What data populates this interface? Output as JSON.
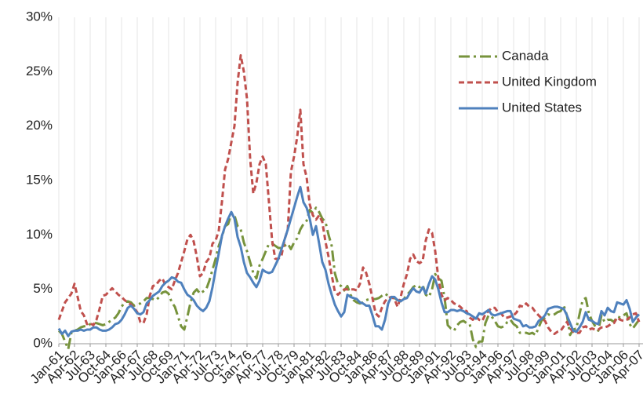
{
  "chart_data": {
    "type": "line",
    "categories": [
      "Jan-61",
      null,
      null,
      null,
      null,
      "Apr-62",
      null,
      null,
      null,
      null,
      "Jul-63",
      null,
      null,
      null,
      null,
      "Oct-64",
      null,
      null,
      null,
      null,
      "Jan-66",
      null,
      null,
      null,
      null,
      "Apr-67",
      null,
      null,
      null,
      null,
      "Jul-68",
      null,
      null,
      null,
      null,
      "Oct-69",
      null,
      null,
      null,
      null,
      "Jan-71",
      null,
      null,
      null,
      null,
      "Apr-72",
      null,
      null,
      null,
      null,
      "Jul-73",
      null,
      null,
      null,
      null,
      "Oct-74",
      null,
      null,
      null,
      null,
      "Jan-76",
      null,
      null,
      null,
      null,
      "Apr-77",
      null,
      null,
      null,
      null,
      "Jul-78",
      null,
      null,
      null,
      null,
      "Oct-79",
      null,
      null,
      null,
      null,
      "Jan-81",
      null,
      null,
      null,
      null,
      "Apr-82",
      null,
      null,
      null,
      null,
      "Jul-83",
      null,
      null,
      null,
      null,
      "Oct-84",
      null,
      null,
      null,
      null,
      "Jan-86",
      null,
      null,
      null,
      null,
      "Apr-87",
      null,
      null,
      null,
      null,
      "Jul-88",
      null,
      null,
      null,
      null,
      "Oct-89",
      null,
      null,
      null,
      null,
      "Jan-91",
      null,
      null,
      null,
      null,
      "Apr-92",
      null,
      null,
      null,
      null,
      "Jul-93",
      null,
      null,
      null,
      null,
      "Oct-94",
      null,
      null,
      null,
      null,
      "Jan-96",
      null,
      null,
      null,
      null,
      "Apr-97",
      null,
      null,
      null,
      null,
      "Jul-98",
      null,
      null,
      null,
      null,
      "Oct-99",
      null,
      null,
      null,
      null,
      "Jan-01",
      null,
      null,
      null,
      null,
      "Apr-02",
      null,
      null,
      null,
      null,
      "Jul-03",
      null,
      null,
      null,
      null,
      "Oct-04",
      null,
      null,
      null,
      null,
      "Jan-06",
      null,
      null,
      null,
      null,
      "Apr-07"
    ],
    "series": [
      {
        "name": "Canada",
        "color": "#77933c",
        "dash": "14,5,3,5",
        "values": [
          1.2,
          0.9,
          0.2,
          -0.5,
          1.0,
          1.2,
          1.3,
          1.5,
          1.6,
          1.6,
          1.8,
          1.9,
          1.9,
          1.8,
          1.7,
          1.8,
          2.0,
          2.2,
          2.4,
          2.8,
          3.4,
          3.8,
          3.9,
          3.8,
          3.5,
          3.6,
          3.7,
          3.9,
          4.2,
          4.2,
          4.1,
          4.0,
          4.3,
          4.7,
          4.8,
          4.6,
          3.8,
          3.4,
          2.5,
          1.6,
          1.3,
          2.5,
          3.8,
          4.7,
          5.0,
          4.6,
          4.8,
          5.0,
          5.8,
          6.8,
          7.8,
          9.0,
          9.8,
          10.8,
          11.0,
          12.0,
          11.8,
          10.8,
          10.5,
          9.3,
          8.5,
          7.5,
          6.5,
          6.0,
          7.2,
          7.8,
          8.5,
          9.2,
          9.2,
          9.0,
          8.8,
          8.8,
          9.0,
          9.2,
          8.7,
          9.3,
          9.7,
          10.5,
          11.0,
          11.3,
          12.3,
          12.0,
          12.5,
          12.1,
          11.5,
          11.2,
          10.0,
          9.0,
          6.5,
          5.5,
          5.3,
          4.9,
          5.3,
          4.5,
          4.0,
          3.8,
          3.7,
          3.8,
          4.0,
          4.1,
          4.1,
          4.1,
          4.2,
          4.4,
          4.6,
          4.4,
          4.3,
          4.2,
          4.0,
          3.9,
          4.1,
          4.5,
          4.8,
          5.2,
          5.4,
          5.2,
          5.4,
          4.5,
          4.3,
          5.0,
          6.4,
          6.0,
          5.8,
          4.2,
          1.7,
          1.4,
          1.2,
          1.7,
          2.0,
          2.1,
          1.9,
          1.8,
          0.4,
          -0.3,
          0.2,
          0.2,
          1.9,
          2.6,
          2.5,
          2.1,
          1.6,
          1.5,
          1.6,
          2.0,
          2.2,
          1.8,
          1.6,
          1.0,
          1.0,
          1.0,
          0.9,
          1.0,
          0.8,
          1.5,
          2.2,
          2.4,
          2.7,
          2.6,
          2.7,
          2.9,
          3.0,
          3.5,
          2.6,
          0.8,
          1.3,
          1.4,
          2.7,
          4.0,
          4.2,
          2.8,
          2.1,
          1.6,
          1.2,
          2.6,
          2.0,
          2.2,
          2.2,
          2.0,
          2.5,
          2.4,
          2.6,
          2.8,
          1.8,
          1.4,
          1.8,
          2.2
        ]
      },
      {
        "name": "United Kingdom",
        "color": "#c0504d",
        "dash": "7,4",
        "values": [
          2.2,
          3.0,
          3.8,
          4.2,
          4.6,
          5.5,
          4.3,
          3.0,
          2.6,
          1.8,
          1.9,
          1.7,
          2.2,
          3.2,
          4.4,
          4.5,
          4.8,
          5.1,
          4.8,
          4.5,
          4.3,
          4.0,
          3.8,
          3.6,
          3.3,
          2.9,
          2.0,
          1.9,
          2.7,
          4.4,
          5.3,
          5.4,
          5.8,
          6.0,
          5.4,
          5.2,
          5.0,
          5.8,
          6.5,
          7.5,
          8.5,
          9.6,
          10.0,
          9.4,
          8.0,
          6.2,
          6.5,
          7.5,
          7.9,
          9.2,
          9.5,
          10.4,
          13.0,
          16.0,
          17.0,
          18.5,
          20.0,
          24.0,
          26.5,
          25.0,
          22.5,
          17.0,
          13.8,
          14.8,
          16.5,
          17.2,
          16.5,
          13.0,
          9.5,
          7.8,
          7.8,
          8.1,
          9.6,
          10.5,
          15.8,
          17.2,
          19.0,
          21.5,
          16.5,
          15.3,
          12.8,
          11.8,
          11.4,
          11.8,
          11.2,
          9.4,
          8.0,
          6.3,
          4.8,
          4.5,
          4.8,
          5.0,
          5.0,
          5.0,
          5.0,
          4.9,
          5.5,
          7.0,
          6.5,
          5.5,
          4.2,
          2.8,
          2.5,
          3.3,
          3.9,
          4.2,
          4.3,
          4.1,
          3.4,
          4.3,
          5.5,
          6.4,
          7.8,
          8.2,
          7.6,
          7.4,
          7.6,
          9.5,
          10.5,
          10.2,
          8.5,
          6.0,
          4.5,
          4.0,
          4.2,
          4.0,
          3.7,
          3.6,
          3.4,
          3.1,
          3.0,
          2.4,
          2.2,
          2.5,
          2.2,
          2.1,
          2.7,
          3.0,
          3.3,
          3.3,
          2.9,
          2.8,
          2.4,
          2.4,
          2.5,
          2.6,
          2.9,
          3.5,
          3.4,
          3.7,
          3.4,
          3.3,
          2.9,
          2.6,
          2.3,
          2.1,
          1.5,
          1.1,
          0.9,
          1.1,
          1.2,
          1.6,
          2.0,
          1.4,
          1.1,
          1.0,
          1.0,
          1.5,
          1.6,
          1.3,
          1.4,
          1.3,
          1.3,
          1.5,
          1.5,
          1.6,
          1.8,
          1.9,
          2.4,
          2.2,
          2.1,
          2.2,
          2.4,
          2.7,
          2.8,
          2.0
        ]
      },
      {
        "name": "United States",
        "color": "#4f81bd",
        "dash": "none",
        "values": [
          1.4,
          0.9,
          1.2,
          0.7,
          1.1,
          1.2,
          1.2,
          1.3,
          1.2,
          1.3,
          1.3,
          1.5,
          1.5,
          1.3,
          1.2,
          1.2,
          1.3,
          1.5,
          1.8,
          1.9,
          2.2,
          2.7,
          3.3,
          3.5,
          3.2,
          2.8,
          2.7,
          2.9,
          3.7,
          4.0,
          4.4,
          4.6,
          4.8,
          5.3,
          5.6,
          5.8,
          6.1,
          6.0,
          5.7,
          5.6,
          5.0,
          4.5,
          4.3,
          4.0,
          3.5,
          3.2,
          3.0,
          3.3,
          3.9,
          5.2,
          6.8,
          8.3,
          9.9,
          10.8,
          11.5,
          12.1,
          11.5,
          9.8,
          8.9,
          7.5,
          6.5,
          6.1,
          5.6,
          5.2,
          5.8,
          6.8,
          6.6,
          6.5,
          6.6,
          7.2,
          7.8,
          8.7,
          9.6,
          10.5,
          11.5,
          12.5,
          13.5,
          14.4,
          13.0,
          12.5,
          11.5,
          10.0,
          10.8,
          9.2,
          7.5,
          6.8,
          5.5,
          4.5,
          3.6,
          3.0,
          2.5,
          2.9,
          4.5,
          4.3,
          4.2,
          4.1,
          3.8,
          3.7,
          3.5,
          3.5,
          2.6,
          1.6,
          1.6,
          1.3,
          2.2,
          3.7,
          4.3,
          4.3,
          4.0,
          3.9,
          4.1,
          4.2,
          4.7,
          5.1,
          4.8,
          4.7,
          5.2,
          4.6,
          5.5,
          6.2,
          5.9,
          5.0,
          3.8,
          2.9,
          2.9,
          3.1,
          3.1,
          3.0,
          3.1,
          3.0,
          2.8,
          2.7,
          2.5,
          2.3,
          2.8,
          2.7,
          2.9,
          3.1,
          2.7,
          2.6,
          2.7,
          2.8,
          2.9,
          3.0,
          3.0,
          2.3,
          2.2,
          2.1,
          1.6,
          1.7,
          1.5,
          1.5,
          1.6,
          2.1,
          2.3,
          2.6,
          3.2,
          3.3,
          3.4,
          3.4,
          3.3,
          3.2,
          2.6,
          1.9,
          1.2,
          1.1,
          1.5,
          2.0,
          2.9,
          2.2,
          2.1,
          1.9,
          1.8,
          3.0,
          2.6,
          3.3,
          3.0,
          2.9,
          3.8,
          3.7,
          3.6,
          4.0,
          3.2,
          2.0,
          2.4,
          2.7
        ]
      }
    ],
    "ylim": [
      0,
      30
    ],
    "yticks": [
      {
        "value": 0,
        "label": "0%"
      },
      {
        "value": 5,
        "label": "5%"
      },
      {
        "value": 10,
        "label": "10%"
      },
      {
        "value": 15,
        "label": "15%"
      },
      {
        "value": 20,
        "label": "20%"
      },
      {
        "value": 25,
        "label": "25%"
      },
      {
        "value": 30,
        "label": "30%"
      }
    ],
    "xgrid": true,
    "legend": "top-right"
  }
}
